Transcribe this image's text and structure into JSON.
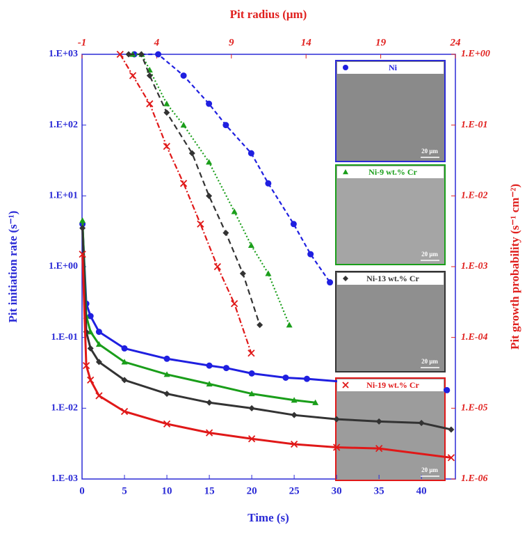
{
  "chart_data": {
    "type": "scatter",
    "x_label": "Time (s)",
    "x2_label": "Pit radius (μm)",
    "y_label": "Pit initiation rate (s⁻¹)",
    "y2_label": "Pit growth probability (s⁻¹ cm⁻²)",
    "xlim": [
      0,
      44
    ],
    "xticks": [
      0,
      5,
      10,
      15,
      20,
      25,
      30,
      35,
      40
    ],
    "x2lim": [
      -1,
      24
    ],
    "x2ticks": [
      -1,
      4,
      9,
      14,
      19,
      24
    ],
    "log_y": true,
    "ylim": [
      0.001,
      1000
    ],
    "yticks": [
      {
        "value": 0.001,
        "label": "1.E-03"
      },
      {
        "value": 0.01,
        "label": "1.E-02"
      },
      {
        "value": 0.1,
        "label": "1.E-01"
      },
      {
        "value": 1,
        "label": "1.E+00"
      },
      {
        "value": 10,
        "label": "1.E+01"
      },
      {
        "value": 100,
        "label": "1.E+02"
      },
      {
        "value": 1000,
        "label": "1.E+03"
      }
    ],
    "y2lim": [
      1e-06,
      1
    ],
    "y2ticks": [
      {
        "value": 1e-06,
        "label": "1.E-06"
      },
      {
        "value": 1e-05,
        "label": "1.E-05"
      },
      {
        "value": 0.0001,
        "label": "1.E-04"
      },
      {
        "value": 0.001,
        "label": "1.E-03"
      },
      {
        "value": 0.01,
        "label": "1.E-02"
      },
      {
        "value": 0.1,
        "label": "1.E-01"
      },
      {
        "value": 1,
        "label": "1.E+00"
      }
    ],
    "scale_bar_label": "20 μm",
    "series": [
      {
        "name": "Ni",
        "color": "#1f1fe0",
        "marker": "circle",
        "x": [
          0.05,
          0.5,
          1,
          2,
          5,
          10,
          15,
          17,
          20,
          24,
          26.5,
          43
        ],
        "values": [
          4,
          0.3,
          0.2,
          0.12,
          0.07,
          0.05,
          0.04,
          0.037,
          0.031,
          0.027,
          0.026,
          0.018
        ]
      },
      {
        "name": "Ni-9 wt.% Cr",
        "color": "#1a9e1a",
        "marker": "triangle",
        "x": [
          0.05,
          0.5,
          1,
          2,
          5,
          10,
          15,
          20,
          25,
          27.5
        ],
        "values": [
          4.5,
          0.2,
          0.12,
          0.08,
          0.045,
          0.03,
          0.022,
          0.016,
          0.013,
          0.012
        ]
      },
      {
        "name": "Ni-13 wt.% Cr",
        "color": "#333333",
        "marker": "diamond",
        "x": [
          0.05,
          0.5,
          1,
          2,
          5,
          10,
          15,
          20,
          25,
          30,
          35,
          40,
          43.5
        ],
        "values": [
          3.5,
          0.12,
          0.07,
          0.045,
          0.025,
          0.016,
          0.012,
          0.01,
          0.008,
          0.007,
          0.0065,
          0.0062,
          0.005
        ]
      },
      {
        "name": "Ni-19 wt.% Cr",
        "color": "#e01818",
        "marker": "cross",
        "x": [
          0.05,
          0.5,
          1,
          2,
          5,
          10,
          15,
          20,
          25,
          30,
          35,
          43.5
        ],
        "values": [
          1.5,
          0.04,
          0.025,
          0.015,
          0.009,
          0.006,
          0.0045,
          0.0037,
          0.0031,
          0.0028,
          0.0027,
          0.002
        ]
      },
      {
        "color": "#1f1fe0",
        "marker": "circle",
        "axis": "y2",
        "xaxis": "x2",
        "dash": "6,4",
        "x": [
          2.5,
          4.1,
          5.8,
          7.5,
          8.63,
          10.33,
          11.47,
          13.17,
          14.3,
          15.6
        ],
        "values": [
          1,
          1,
          0.5,
          0.2,
          0.1,
          0.04,
          0.015,
          0.004,
          0.0015,
          0.0006
        ]
      },
      {
        "color": "#1a9e1a",
        "marker": "triangle",
        "axis": "y2",
        "xaxis": "x2",
        "dash": "2,3",
        "x": [
          2.4,
          3,
          3.53,
          4.67,
          5.8,
          7.5,
          9.2,
          10.33,
          11.47,
          12.88
        ],
        "values": [
          1,
          1,
          0.6,
          0.2,
          0.1,
          0.03,
          0.006,
          0.002,
          0.0008,
          0.00015
        ]
      },
      {
        "color": "#333333",
        "marker": "diamond",
        "axis": "y2",
        "xaxis": "x2",
        "dash": "8,5",
        "x": [
          2.12,
          2.97,
          3.53,
          4.67,
          6.37,
          7.5,
          8.63,
          9.77,
          10.9
        ],
        "values": [
          1,
          1,
          0.5,
          0.15,
          0.04,
          0.01,
          0.003,
          0.0008,
          0.00015
        ]
      },
      {
        "color": "#e01818",
        "marker": "cross",
        "axis": "y2",
        "xaxis": "x2",
        "dash": "8,3,2,3",
        "x": [
          1.55,
          2.4,
          3.53,
          4.67,
          5.8,
          6.93,
          8.07,
          9.2,
          10.33
        ],
        "values": [
          1,
          0.5,
          0.2,
          0.05,
          0.015,
          0.004,
          0.001,
          0.0003,
          6e-05
        ]
      }
    ]
  }
}
